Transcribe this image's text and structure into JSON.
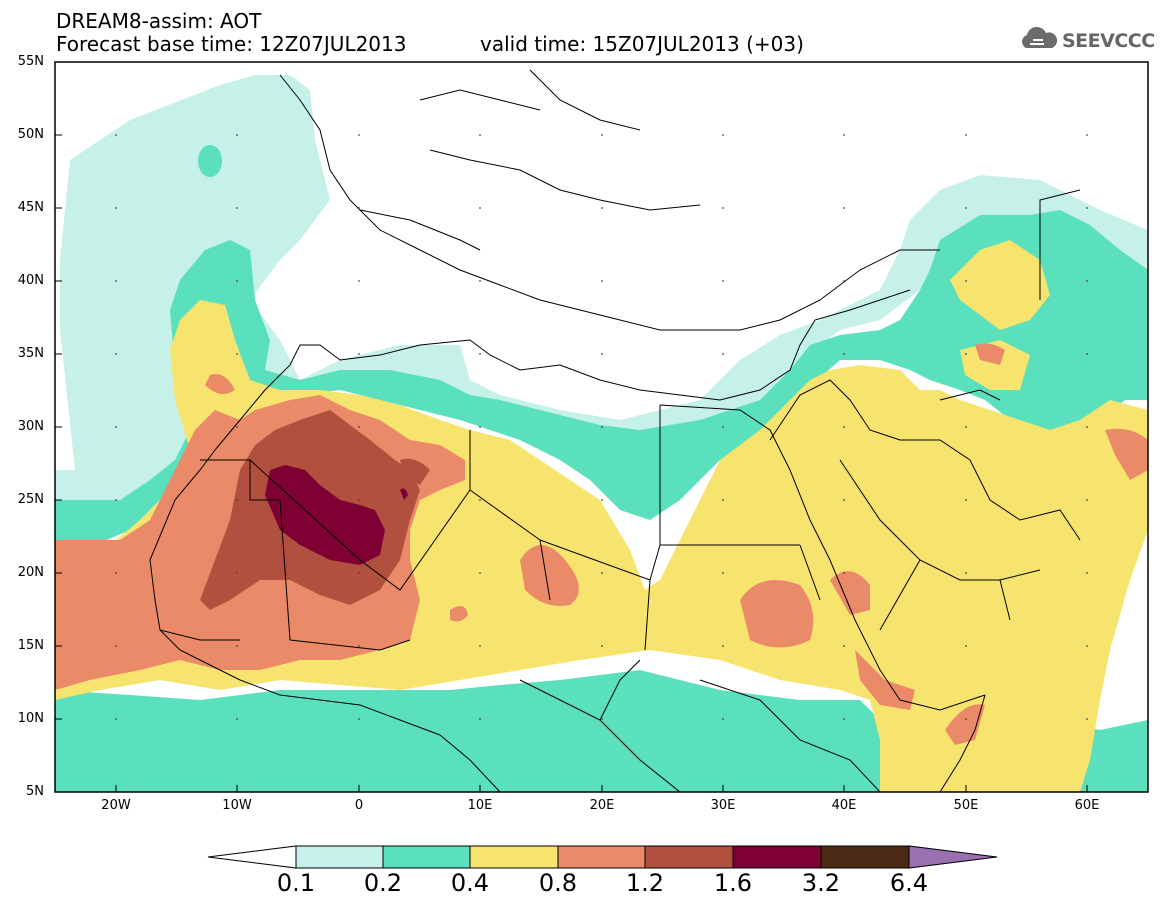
{
  "header": {
    "title_line1": "DREAM8-assim: AOT",
    "title_line2": "Forecast base time: 12Z07JUL2013",
    "valid_time": "valid time: 15Z07JUL2013 (+03)",
    "logo_text": "SEEVCCC"
  },
  "map": {
    "lat_labels": [
      "55N",
      "50N",
      "45N",
      "40N",
      "35N",
      "30N",
      "25N",
      "20N",
      "15N",
      "10N",
      "5N"
    ],
    "lon_labels": [
      "20W",
      "10W",
      "0",
      "10E",
      "20E",
      "30E",
      "40E",
      "50E",
      "60E"
    ],
    "region": "North Africa, Europe, Middle East",
    "lon_range": [
      -25,
      65
    ],
    "lat_range": [
      5,
      55
    ]
  },
  "colorbar": {
    "labels": [
      "0.1",
      "0.2",
      "0.4",
      "0.8",
      "1.2",
      "1.6",
      "3.2",
      "6.4"
    ],
    "colors": [
      "#ffffff",
      "#c6f1e8",
      "#5ae0bc",
      "#f7e46e",
      "#ea8a68",
      "#b2503f",
      "#7f0032",
      "#4a2a14",
      "#9a70b0"
    ]
  }
}
